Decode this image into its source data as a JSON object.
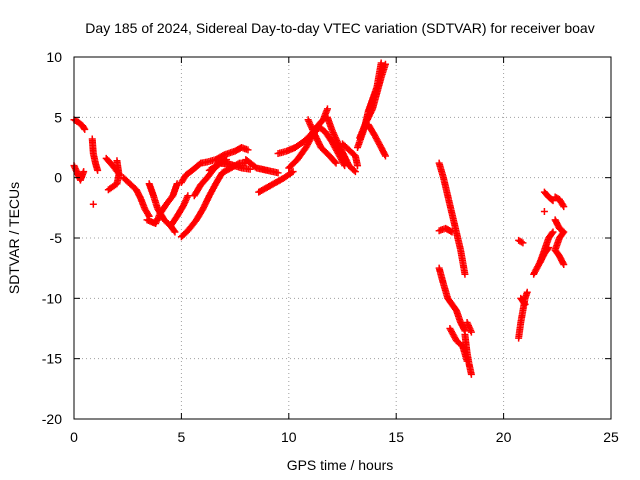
{
  "chart_data": {
    "type": "scatter",
    "title": "Day 185 of 2024, Sidereal Day-to-day VTEC variation (SDTVAR) for receiver boav",
    "xlabel": "GPS time / hours",
    "ylabel": "SDTVAR / TECUs",
    "xlim": [
      0,
      25
    ],
    "ylim": [
      -20,
      10
    ],
    "xticks": [
      0,
      5,
      10,
      15,
      20,
      25
    ],
    "yticks": [
      -20,
      -15,
      -10,
      -5,
      0,
      5,
      10
    ],
    "xtick_labels": [
      "0",
      "5",
      "10",
      "15",
      "20",
      "25"
    ],
    "ytick_labels": [
      "-20",
      "-15",
      "-10",
      "-5",
      "0",
      "5",
      "10"
    ],
    "grid": true,
    "marker": "plus",
    "color": "#ff0000",
    "segments": [
      {
        "pts": [
          [
            0.0,
            4.8
          ],
          [
            0.2,
            4.6
          ],
          [
            0.4,
            4.3
          ],
          [
            0.5,
            4.0
          ]
        ]
      },
      {
        "pts": [
          [
            0.0,
            1.0
          ],
          [
            0.15,
            0.4
          ],
          [
            0.3,
            -0.2
          ],
          [
            0.45,
            0.5
          ]
        ]
      },
      {
        "pts": [
          [
            0.85,
            3.2
          ],
          [
            0.9,
            2.0
          ],
          [
            1.0,
            1.2
          ],
          [
            1.1,
            0.6
          ]
        ]
      },
      {
        "pts": [
          [
            0.9,
            -2.2
          ]
        ]
      },
      {
        "pts": [
          [
            1.5,
            1.6
          ],
          [
            1.8,
            1.0
          ],
          [
            2.1,
            0.3
          ],
          [
            2.0,
            -0.5
          ],
          [
            1.6,
            -1.0
          ]
        ]
      },
      {
        "pts": [
          [
            2.0,
            1.4
          ],
          [
            2.1,
            0.2
          ]
        ]
      },
      {
        "pts": [
          [
            2.3,
            0.0
          ],
          [
            2.6,
            -0.5
          ],
          [
            2.9,
            -1.0
          ],
          [
            3.1,
            -1.7
          ],
          [
            3.3,
            -2.6
          ],
          [
            3.5,
            -3.2
          ]
        ]
      },
      {
        "pts": [
          [
            3.5,
            -0.5
          ],
          [
            3.7,
            -1.5
          ],
          [
            3.9,
            -2.6
          ],
          [
            4.2,
            -3.5
          ],
          [
            4.5,
            -4.0
          ],
          [
            4.7,
            -4.5
          ]
        ]
      },
      {
        "pts": [
          [
            3.4,
            -3.5
          ],
          [
            3.8,
            -3.8
          ],
          [
            4.0,
            -3.0
          ],
          [
            4.3,
            -2.2
          ],
          [
            4.6,
            -1.5
          ],
          [
            4.8,
            -0.5
          ]
        ]
      },
      {
        "pts": [
          [
            4.5,
            -4.0
          ],
          [
            4.8,
            -3.2
          ],
          [
            5.1,
            -2.3
          ],
          [
            5.3,
            -1.5
          ]
        ]
      },
      {
        "pts": [
          [
            5.0,
            -0.4
          ],
          [
            5.2,
            0.2
          ],
          [
            5.5,
            0.6
          ],
          [
            5.9,
            1.2
          ],
          [
            6.2,
            1.3
          ],
          [
            6.6,
            1.5
          ],
          [
            7.0,
            1.9
          ],
          [
            7.5,
            2.2
          ],
          [
            7.8,
            2.5
          ],
          [
            8.1,
            2.3
          ]
        ]
      },
      {
        "pts": [
          [
            5.0,
            -4.9
          ],
          [
            5.3,
            -4.4
          ],
          [
            5.7,
            -3.5
          ],
          [
            6.0,
            -2.6
          ],
          [
            6.3,
            -1.5
          ],
          [
            6.6,
            -0.5
          ],
          [
            6.9,
            0.4
          ],
          [
            7.3,
            0.8
          ],
          [
            7.7,
            1.2
          ],
          [
            8.0,
            1.2
          ]
        ]
      },
      {
        "pts": [
          [
            5.6,
            -1.5
          ],
          [
            5.9,
            -0.6
          ],
          [
            6.2,
            0.0
          ],
          [
            6.5,
            0.7
          ],
          [
            6.8,
            1.2
          ],
          [
            7.1,
            1.5
          ]
        ]
      },
      {
        "pts": [
          [
            6.3,
            0.6
          ],
          [
            6.8,
            1.2
          ],
          [
            7.3,
            1.1
          ],
          [
            7.8,
            0.8
          ],
          [
            8.2,
            0.7
          ]
        ]
      },
      {
        "pts": [
          [
            8.0,
            1.5
          ],
          [
            8.5,
            0.8
          ],
          [
            9.0,
            0.6
          ],
          [
            9.5,
            0.4
          ]
        ]
      },
      {
        "pts": [
          [
            8.6,
            -1.2
          ],
          [
            9.0,
            -0.8
          ],
          [
            9.4,
            -0.4
          ],
          [
            9.8,
            0.0
          ],
          [
            10.2,
            0.5
          ]
        ]
      },
      {
        "pts": [
          [
            9.5,
            2.0
          ],
          [
            9.9,
            2.2
          ],
          [
            10.3,
            2.5
          ],
          [
            10.7,
            3.0
          ],
          [
            11.0,
            3.5
          ],
          [
            11.3,
            4.2
          ],
          [
            11.6,
            4.8
          ],
          [
            11.8,
            5.7
          ]
        ]
      },
      {
        "pts": [
          [
            10.0,
            0.8
          ],
          [
            10.4,
            1.5
          ],
          [
            10.8,
            2.5
          ],
          [
            11.1,
            3.5
          ],
          [
            11.4,
            4.2
          ],
          [
            11.7,
            3.8
          ],
          [
            12.0,
            3.0
          ],
          [
            12.3,
            2.0
          ],
          [
            12.6,
            1.0
          ]
        ]
      },
      {
        "pts": [
          [
            10.9,
            4.8
          ],
          [
            11.2,
            3.6
          ],
          [
            11.5,
            2.5
          ],
          [
            11.9,
            1.8
          ],
          [
            12.2,
            1.2
          ]
        ]
      },
      {
        "pts": [
          [
            11.8,
            5.0
          ],
          [
            12.0,
            4.0
          ],
          [
            12.2,
            3.2
          ],
          [
            12.5,
            2.1
          ],
          [
            12.8,
            1.0
          ],
          [
            13.1,
            0.5
          ]
        ]
      },
      {
        "pts": [
          [
            12.5,
            2.8
          ],
          [
            12.8,
            2.3
          ],
          [
            13.1,
            1.8
          ],
          [
            13.2,
            1.0
          ]
        ]
      },
      {
        "pts": [
          [
            13.2,
            2.5
          ],
          [
            13.5,
            4.0
          ],
          [
            13.7,
            5.5
          ],
          [
            13.9,
            6.5
          ],
          [
            14.1,
            7.5
          ],
          [
            14.3,
            9.5
          ]
        ]
      },
      {
        "pts": [
          [
            13.3,
            3.3
          ],
          [
            13.6,
            4.6
          ],
          [
            13.9,
            5.7
          ],
          [
            14.1,
            7.0
          ],
          [
            14.3,
            8.3
          ],
          [
            14.5,
            9.4
          ]
        ]
      },
      {
        "pts": [
          [
            13.7,
            4.4
          ],
          [
            14.0,
            3.5
          ],
          [
            14.3,
            2.5
          ],
          [
            14.5,
            1.8
          ]
        ]
      },
      {
        "pts": [
          [
            17.0,
            1.2
          ],
          [
            17.2,
            0.0
          ],
          [
            17.4,
            -1.5
          ],
          [
            17.6,
            -3.0
          ],
          [
            17.8,
            -4.5
          ],
          [
            18.0,
            -6.0
          ],
          [
            18.2,
            -8.0
          ]
        ]
      },
      {
        "pts": [
          [
            17.0,
            -4.4
          ],
          [
            17.3,
            -4.2
          ],
          [
            17.6,
            -4.5
          ]
        ]
      },
      {
        "pts": [
          [
            17.0,
            -7.5
          ],
          [
            17.2,
            -8.8
          ],
          [
            17.4,
            -10.0
          ],
          [
            17.6,
            -10.5
          ],
          [
            17.8,
            -11.0
          ],
          [
            18.0,
            -12.0
          ],
          [
            18.2,
            -12.7
          ]
        ]
      },
      {
        "pts": [
          [
            17.5,
            -12.5
          ],
          [
            17.8,
            -13.5
          ],
          [
            18.1,
            -14.0
          ],
          [
            18.3,
            -15.2
          ]
        ]
      },
      {
        "pts": [
          [
            18.2,
            -13.0
          ],
          [
            18.3,
            -14.5
          ],
          [
            18.4,
            -15.5
          ],
          [
            18.5,
            -16.3
          ]
        ]
      },
      {
        "pts": [
          [
            18.3,
            -12.0
          ],
          [
            18.5,
            -12.8
          ]
        ]
      },
      {
        "pts": [
          [
            20.7,
            -13.3
          ],
          [
            20.8,
            -12.0
          ],
          [
            20.9,
            -11.0
          ],
          [
            21.0,
            -10.0
          ],
          [
            21.1,
            -9.5
          ]
        ]
      },
      {
        "pts": [
          [
            20.7,
            -5.2
          ],
          [
            20.9,
            -5.4
          ]
        ]
      },
      {
        "pts": [
          [
            20.8,
            -10.0
          ],
          [
            21.0,
            -10.5
          ]
        ]
      },
      {
        "pts": [
          [
            21.4,
            -8.0
          ],
          [
            21.7,
            -7.0
          ],
          [
            21.9,
            -6.0
          ],
          [
            22.1,
            -5.0
          ],
          [
            22.3,
            -4.5
          ]
        ]
      },
      {
        "pts": [
          [
            21.7,
            -7.0
          ],
          [
            21.9,
            -6.3
          ],
          [
            22.1,
            -5.8
          ]
        ]
      },
      {
        "pts": [
          [
            21.9,
            -1.2
          ],
          [
            22.1,
            -1.6
          ],
          [
            22.3,
            -1.9
          ]
        ]
      },
      {
        "pts": [
          [
            21.9,
            -2.8
          ]
        ]
      },
      {
        "pts": [
          [
            22.4,
            -1.6
          ],
          [
            22.6,
            -1.8
          ],
          [
            22.8,
            -2.4
          ]
        ]
      },
      {
        "pts": [
          [
            22.4,
            -3.5
          ],
          [
            22.6,
            -4.2
          ],
          [
            22.8,
            -4.5
          ],
          [
            22.6,
            -5.0
          ],
          [
            22.4,
            -6.0
          ],
          [
            22.6,
            -6.5
          ],
          [
            22.8,
            -7.2
          ]
        ]
      }
    ]
  }
}
